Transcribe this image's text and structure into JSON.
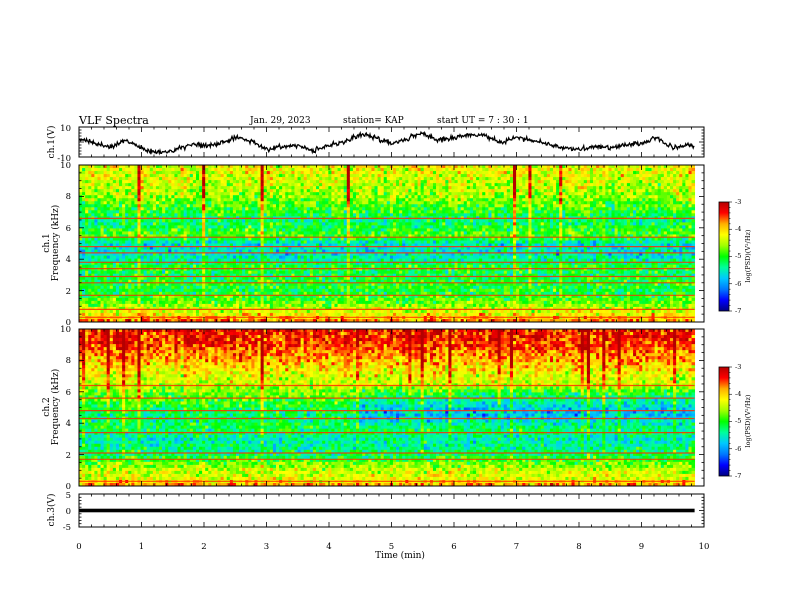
{
  "header": {
    "title": "VLF Spectra",
    "date": "Jan. 29, 2023",
    "station": "station= KAP",
    "start": "start  UT =   7 : 30 : 1"
  },
  "colors": {
    "background": "#ffffff",
    "axis": "#000000",
    "colormap": [
      "#000080",
      "#0000ff",
      "#0078ff",
      "#00c8ff",
      "#00ff9b",
      "#00ff00",
      "#a0ff00",
      "#ffff00",
      "#ffaf00",
      "#ff0000",
      "#b40000"
    ]
  },
  "chart_data": [
    {
      "type": "line",
      "panel": "ch1-waveform",
      "ylabel": "ch.1(V)",
      "yticks": [
        "10",
        "-10"
      ],
      "ylim": [
        -10,
        10
      ],
      "xlim": [
        0,
        10
      ],
      "x": [
        0,
        0.25,
        0.5,
        0.75,
        1.0,
        1.25,
        1.5,
        1.75,
        2.0,
        2.25,
        2.5,
        2.75,
        3.0,
        3.25,
        3.5,
        3.75,
        4.0,
        4.25,
        4.5,
        4.75,
        5.0,
        5.25,
        5.5,
        5.75,
        6.0,
        6.25,
        6.5,
        6.75,
        7.0,
        7.25,
        7.5,
        7.75,
        8.0,
        8.25,
        8.5,
        8.75,
        9.0,
        9.25,
        9.5,
        9.75,
        9.85
      ],
      "values": [
        2,
        -1,
        -3,
        1,
        -4,
        -7,
        -6,
        -2,
        -3,
        -1,
        3,
        1,
        -5,
        -3,
        -2,
        -6,
        -2,
        0,
        5,
        3,
        -1,
        2,
        6,
        1,
        3,
        5,
        4,
        0,
        3,
        1,
        -1,
        -4,
        -5,
        -3,
        -4,
        -2,
        -1,
        3,
        -4,
        -2,
        -3
      ]
    },
    {
      "type": "heatmap",
      "panel": "ch1-spectrogram",
      "ylabel": "ch.1",
      "ylabel2": "Frequency  (kHz)",
      "yticks": [
        "0",
        "2",
        "4",
        "6",
        "8",
        "10"
      ],
      "ylim": [
        0,
        10
      ],
      "xlim": [
        0,
        10
      ],
      "colorbar": {
        "label": "log(PSD)(V²/Hz)",
        "ticks": [
          "-3",
          "-4",
          "-5",
          "-6",
          "-7"
        ],
        "range": [
          -7,
          -3
        ]
      },
      "freq_khz": [
        0,
        0.5,
        1,
        1.5,
        2,
        2.5,
        3,
        3.5,
        4,
        4.5,
        5,
        5.5,
        6,
        6.5,
        7,
        7.5,
        8,
        8.5,
        9,
        9.5,
        10
      ],
      "mean_log_psd": [
        -3.6,
        -4.2,
        -4.6,
        -4.9,
        -5.1,
        -5.0,
        -5.2,
        -5.0,
        -5.5,
        -5.6,
        -5.6,
        -4.8,
        -5.1,
        -5.3,
        -5.0,
        -4.8,
        -4.6,
        -4.5,
        -4.4,
        -4.3,
        -4.3
      ],
      "lines_khz": [
        0.3,
        0.8,
        1.7,
        2.5,
        2.9,
        3.4,
        3.8,
        4.4,
        4.8,
        5.4,
        6.6
      ],
      "late_drift": [
        0,
        0,
        0,
        0,
        0,
        0,
        0,
        0,
        0,
        0,
        0,
        0,
        0,
        0,
        0,
        0,
        0,
        0,
        0,
        0,
        0
      ]
    },
    {
      "type": "heatmap",
      "panel": "ch2-spectrogram",
      "ylabel": "ch.2",
      "ylabel2": "Frequency  (kHz)",
      "yticks": [
        "0",
        "2",
        "4",
        "6",
        "8",
        "10"
      ],
      "ylim": [
        0,
        10
      ],
      "xlim": [
        0,
        10
      ],
      "colorbar": {
        "label": "log(PSD)(V²/Hz)",
        "ticks": [
          "-3",
          "-4",
          "-5",
          "-6",
          "-7"
        ],
        "range": [
          -7,
          -3
        ]
      },
      "freq_khz": [
        0,
        0.5,
        1,
        1.5,
        2,
        2.5,
        3,
        3.5,
        4,
        4.5,
        5,
        5.5,
        6,
        6.5,
        7,
        7.5,
        8,
        8.5,
        9,
        9.5,
        10
      ],
      "mean_log_psd": [
        -3.7,
        -4.3,
        -4.4,
        -4.8,
        -5.2,
        -5.4,
        -5.5,
        -5.2,
        -5.2,
        -5.3,
        -5.1,
        -4.9,
        -4.7,
        -4.4,
        -4.3,
        -4.1,
        -3.9,
        -3.7,
        -3.5,
        -3.4,
        -3.4
      ],
      "lines_khz": [
        0.3,
        1.7,
        2.1,
        3.4,
        4.3,
        4.8,
        5.6,
        6.4
      ],
      "late_drift": [
        0,
        0,
        0,
        0,
        0,
        0,
        0,
        0,
        -0.3,
        -0.5,
        -0.6,
        -0.5,
        -0.3,
        0,
        0,
        0,
        0,
        0,
        0,
        0,
        0
      ]
    },
    {
      "type": "line",
      "panel": "ch3-waveform",
      "ylabel": "ch.3(V)",
      "yticks": [
        "5",
        "0",
        "-5"
      ],
      "ylim": [
        -5,
        5
      ],
      "xlim": [
        0,
        10
      ],
      "x": [
        0,
        9.85
      ],
      "values": [
        0,
        0
      ],
      "band": [
        -0.55,
        0.55
      ]
    }
  ],
  "xaxis": {
    "label": "Time  (min)",
    "ticks": [
      "0",
      "1",
      "2",
      "3",
      "4",
      "5",
      "6",
      "7",
      "8",
      "9",
      "10"
    ],
    "range": [
      0,
      10
    ]
  }
}
